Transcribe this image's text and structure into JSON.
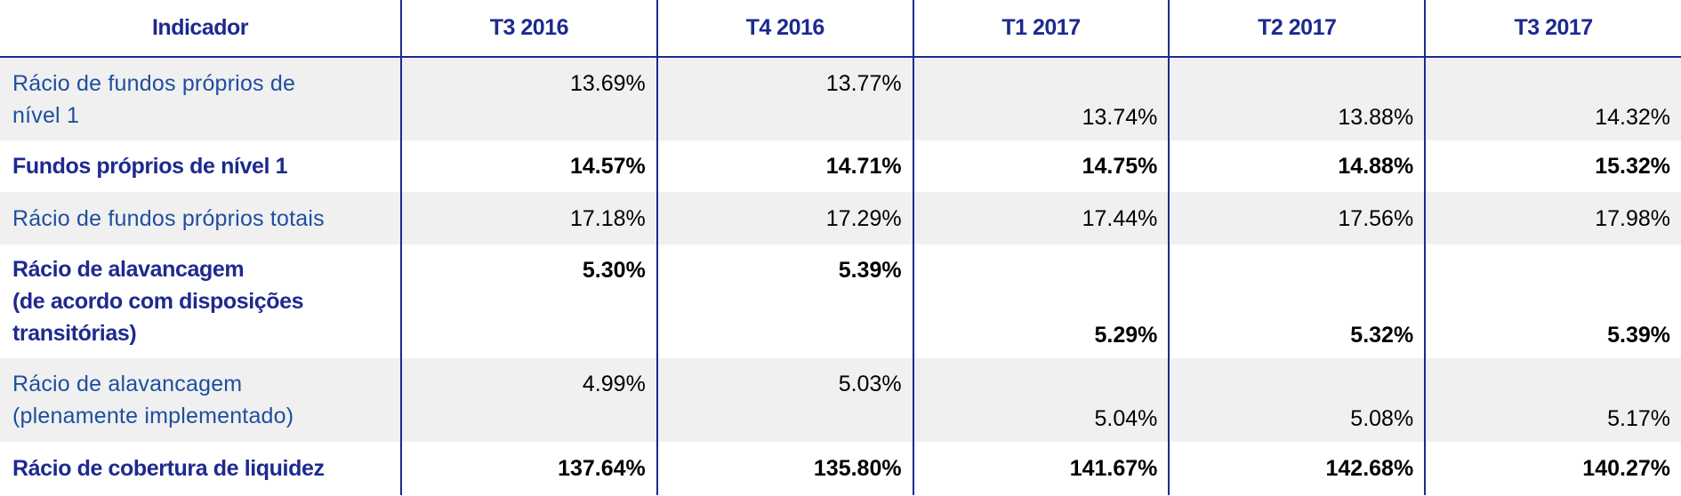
{
  "table": {
    "headers": [
      "Indicador",
      "T3 2016",
      "T4 2016",
      "T1 2017",
      "T2 2017",
      "T3 2017"
    ],
    "rows": [
      {
        "label_lines": [
          "Rácio de fundos próprios de",
          "nível 1"
        ],
        "values": [
          "13.69%",
          "13.77%",
          "13.74%",
          "13.88%",
          "14.32%"
        ]
      },
      {
        "label_lines": [
          "Fundos próprios de nível 1"
        ],
        "values": [
          "14.57%",
          "14.71%",
          "14.75%",
          "14.88%",
          "15.32%"
        ]
      },
      {
        "label_lines": [
          "Rácio de fundos próprios totais"
        ],
        "values": [
          "17.18%",
          "17.29%",
          "17.44%",
          "17.56%",
          "17.98%"
        ]
      },
      {
        "label_lines": [
          "Rácio de alavancagem",
          "(de acordo com disposições",
          "transitórias)"
        ],
        "values": [
          "5.30%",
          "5.39%",
          "5.29%",
          "5.32%",
          "5.39%"
        ]
      },
      {
        "label_lines": [
          "Rácio de alavancagem",
          "(plenamente implementado)"
        ],
        "values": [
          "4.99%",
          "5.03%",
          "5.04%",
          "5.08%",
          "5.17%"
        ]
      },
      {
        "label_lines": [
          "Rácio de cobertura de liquidez"
        ],
        "values": [
          "137.64%",
          "135.80%",
          "141.67%",
          "142.68%",
          "140.27%"
        ]
      }
    ]
  },
  "colors": {
    "header_text": "#1d2a8f",
    "label_text": "#1f4ea0",
    "shaded_row": "#f0f0f0",
    "divider": "#1d2a8f"
  }
}
